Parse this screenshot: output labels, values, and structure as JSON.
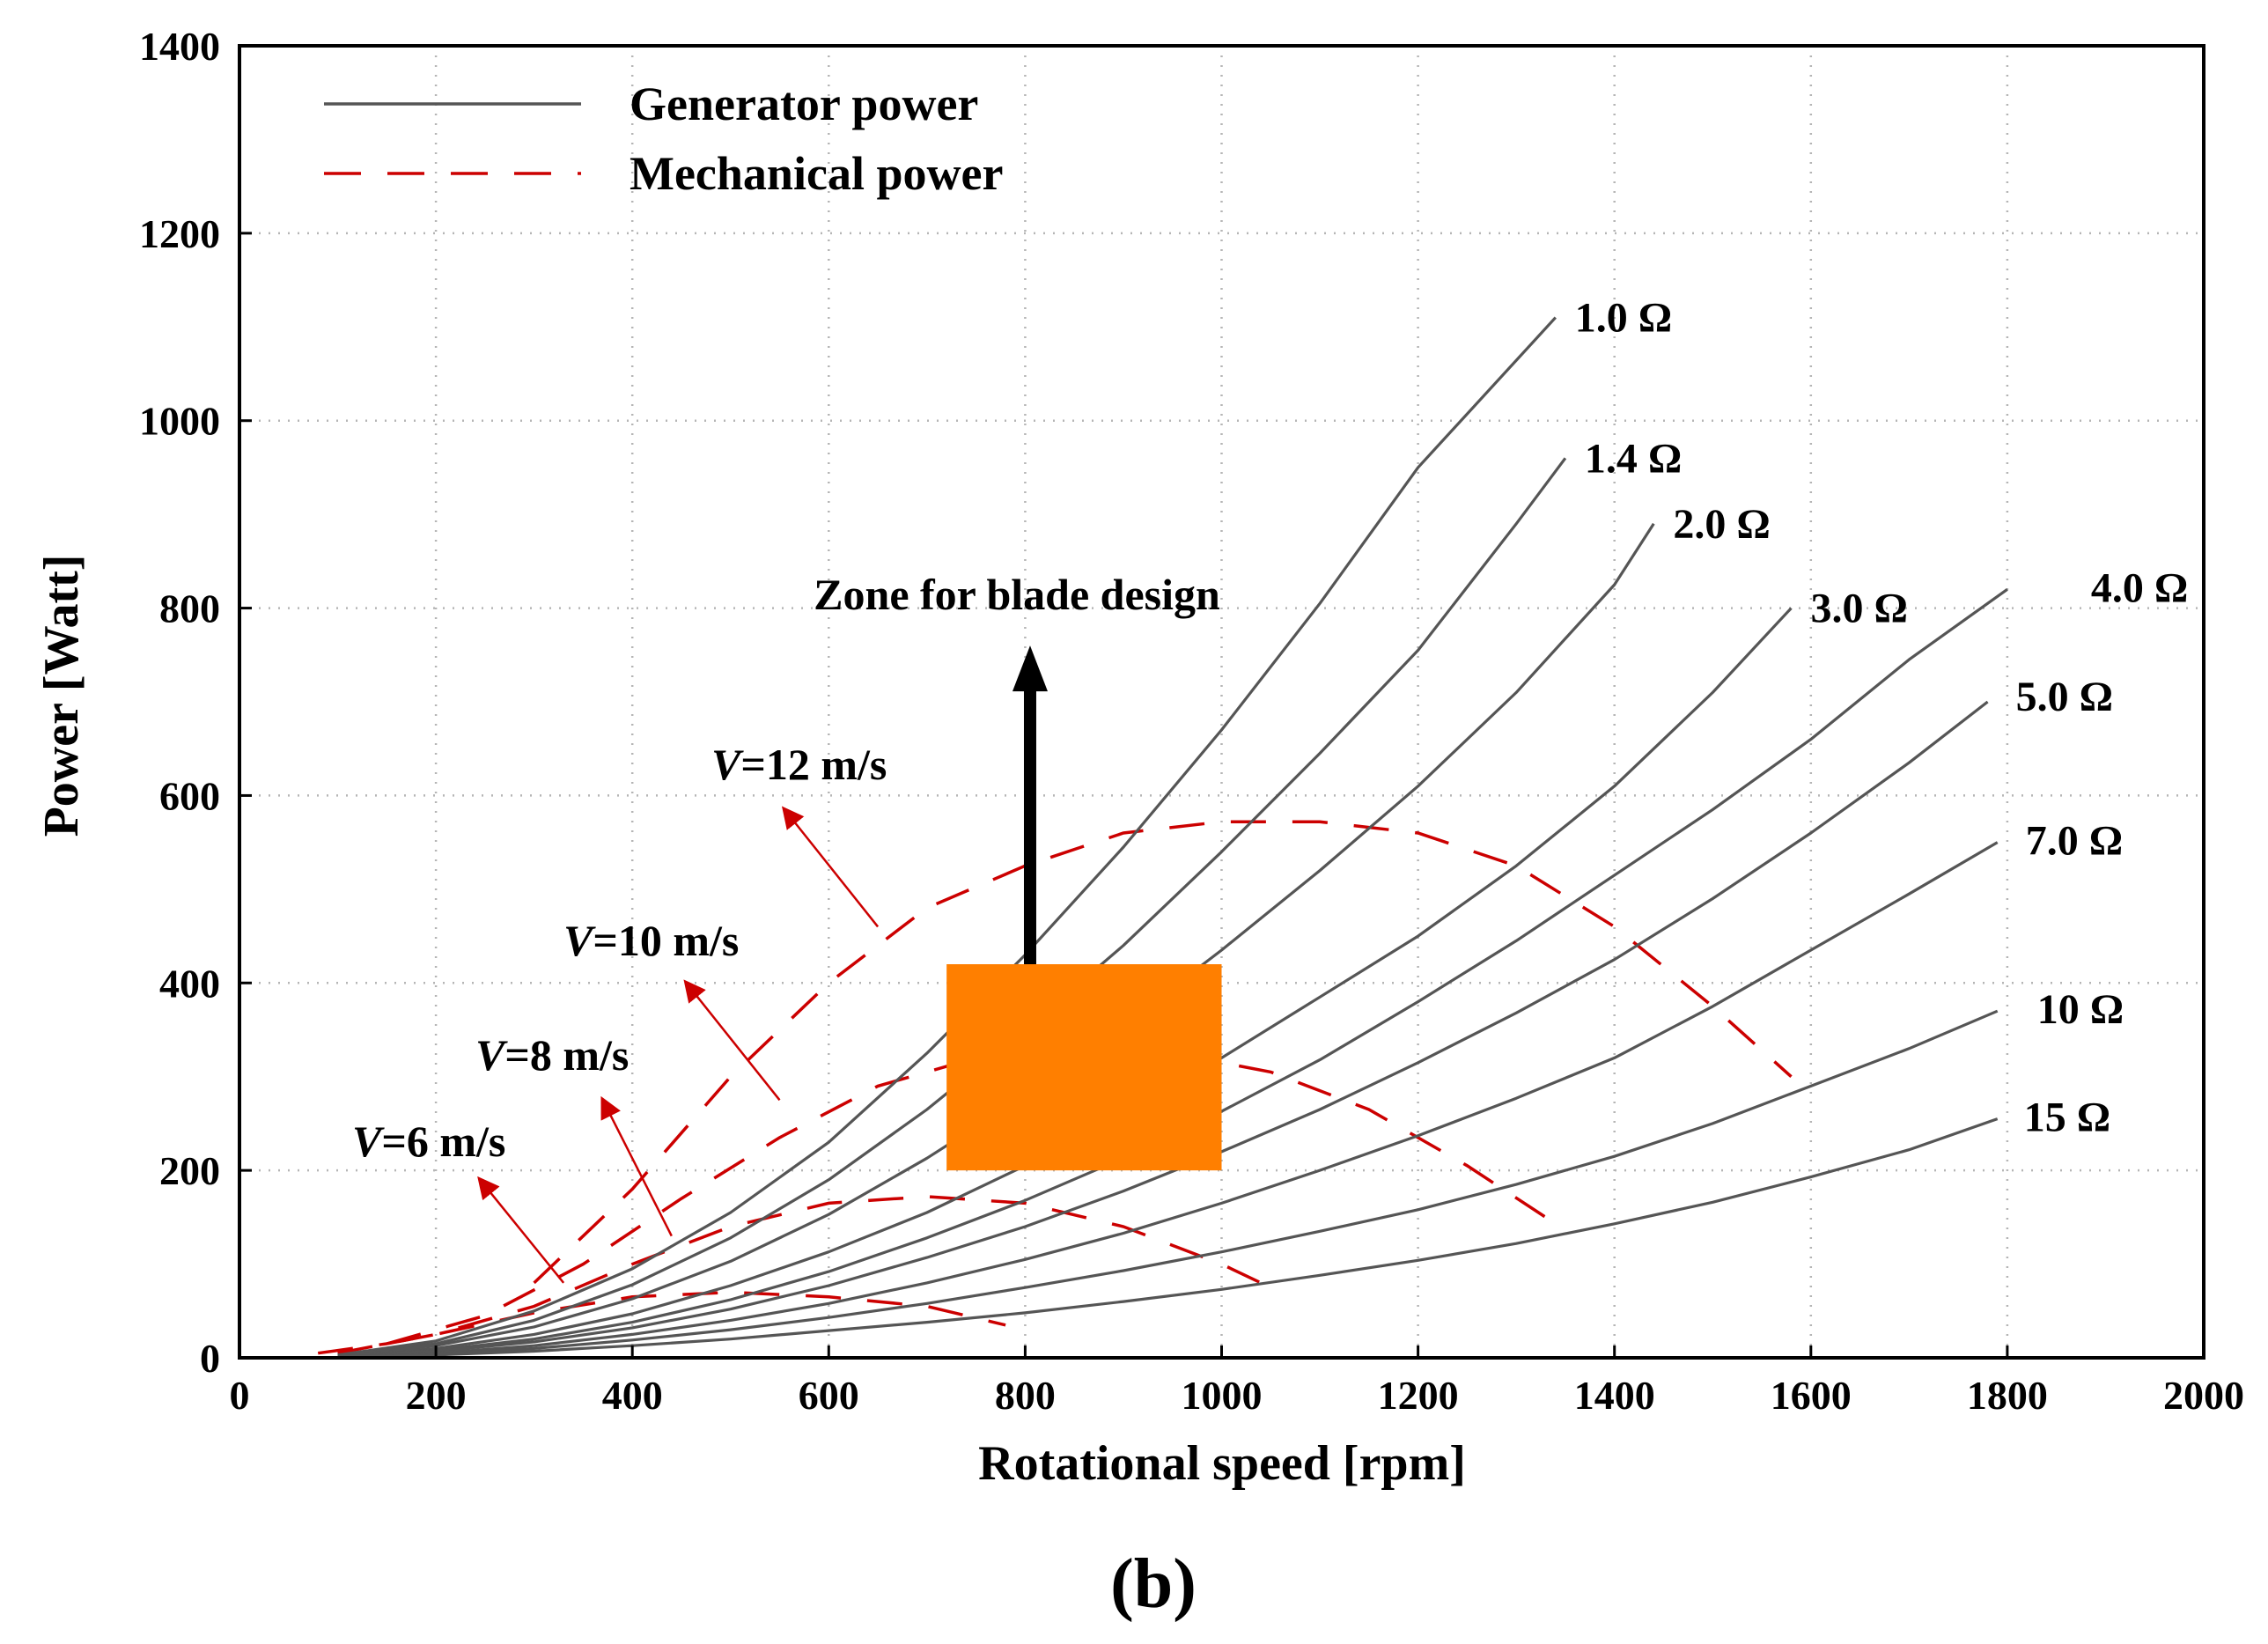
{
  "chart_data": {
    "type": "line",
    "title": "",
    "panel_label": "(b)",
    "xlabel": "Rotational speed [rpm]",
    "ylabel": "Power [Watt]",
    "xlim": [
      0,
      2000
    ],
    "ylim": [
      0,
      1400
    ],
    "x_ticks": [
      0,
      200,
      400,
      600,
      800,
      1000,
      1200,
      1400,
      1600,
      1800,
      2000
    ],
    "y_ticks": [
      0,
      200,
      400,
      600,
      800,
      1000,
      1200,
      1400
    ],
    "x_tick_labels": [
      "0",
      "200",
      "400",
      "600",
      "800",
      "1000",
      "1200",
      "1400",
      "1600",
      "1800",
      "2000"
    ],
    "y_tick_labels": [
      "0",
      "200",
      "400",
      "600",
      "800",
      "1000",
      "1200",
      "1400"
    ],
    "grid": true,
    "legend": {
      "position": "top-left",
      "entries": [
        {
          "label": "Generator power",
          "style": "solid",
          "color": "#555555"
        },
        {
          "label": "Mechanical power",
          "style": "dashed",
          "color": "#cc0000"
        }
      ]
    },
    "generator_series": [
      {
        "name": "1.0 Ω",
        "label": "1.0 Ω",
        "x": [
          100,
          200,
          300,
          400,
          500,
          600,
          700,
          800,
          900,
          1000,
          1100,
          1200,
          1340
        ],
        "y": [
          3,
          18,
          50,
          95,
          155,
          230,
          325,
          430,
          545,
          670,
          805,
          950,
          1110
        ]
      },
      {
        "name": "1.4 Ω",
        "label": "1.4 Ω",
        "x": [
          100,
          200,
          300,
          400,
          500,
          600,
          700,
          800,
          900,
          1000,
          1100,
          1200,
          1300,
          1350
        ],
        "y": [
          3,
          15,
          40,
          78,
          128,
          190,
          265,
          350,
          440,
          540,
          645,
          755,
          890,
          960
        ]
      },
      {
        "name": "2.0 Ω",
        "label": "2.0 Ω",
        "x": [
          100,
          200,
          300,
          400,
          500,
          600,
          700,
          800,
          900,
          1000,
          1100,
          1200,
          1300,
          1400,
          1440
        ],
        "y": [
          3,
          13,
          33,
          63,
          103,
          153,
          213,
          280,
          355,
          435,
          520,
          610,
          710,
          825,
          890
        ]
      },
      {
        "name": "3.0 Ω",
        "label": "3.0 Ω",
        "x": [
          100,
          200,
          300,
          400,
          500,
          600,
          700,
          800,
          900,
          1000,
          1100,
          1200,
          1300,
          1400,
          1500,
          1580
        ],
        "y": [
          2,
          10,
          25,
          47,
          77,
          113,
          155,
          205,
          260,
          320,
          385,
          450,
          525,
          610,
          710,
          800
        ]
      },
      {
        "name": "4.0 Ω",
        "label": "4.0 Ω",
        "x": [
          100,
          200,
          300,
          400,
          500,
          600,
          700,
          800,
          900,
          1000,
          1100,
          1200,
          1300,
          1400,
          1500,
          1600,
          1700,
          1800
        ],
        "y": [
          2,
          8,
          20,
          38,
          62,
          92,
          128,
          168,
          213,
          263,
          318,
          380,
          445,
          515,
          585,
          660,
          745,
          820
        ]
      },
      {
        "name": "5.0 Ω",
        "label": "5.0 Ω",
        "x": [
          100,
          200,
          300,
          400,
          500,
          600,
          700,
          800,
          900,
          1000,
          1100,
          1200,
          1300,
          1400,
          1500,
          1600,
          1700,
          1780
        ],
        "y": [
          2,
          7,
          17,
          32,
          52,
          77,
          107,
          140,
          178,
          220,
          265,
          315,
          368,
          425,
          490,
          560,
          635,
          700
        ]
      },
      {
        "name": "7.0 Ω",
        "label": "7.0 Ω",
        "x": [
          100,
          200,
          300,
          400,
          500,
          600,
          700,
          800,
          900,
          1000,
          1100,
          1200,
          1300,
          1400,
          1500,
          1600,
          1700,
          1790
        ],
        "y": [
          1,
          5,
          13,
          25,
          40,
          58,
          80,
          105,
          133,
          165,
          200,
          237,
          277,
          320,
          375,
          435,
          495,
          550
        ]
      },
      {
        "name": "10 Ω",
        "label": "10 Ω",
        "x": [
          100,
          200,
          300,
          400,
          500,
          600,
          700,
          800,
          900,
          1000,
          1100,
          1200,
          1300,
          1400,
          1500,
          1600,
          1700,
          1790
        ],
        "y": [
          1,
          4,
          10,
          19,
          30,
          43,
          58,
          75,
          93,
          113,
          135,
          158,
          185,
          215,
          250,
          290,
          330,
          370
        ]
      },
      {
        "name": "15 Ω",
        "label": "15 Ω",
        "x": [
          100,
          200,
          300,
          400,
          500,
          600,
          700,
          800,
          900,
          1000,
          1100,
          1200,
          1300,
          1400,
          1500,
          1600,
          1700,
          1790
        ],
        "y": [
          1,
          3,
          7,
          13,
          20,
          29,
          38,
          48,
          60,
          73,
          88,
          104,
          122,
          143,
          166,
          193,
          222,
          255
        ]
      }
    ],
    "mechanical_series": [
      {
        "name": "V=6 m/s",
        "x": [
          80,
          150,
          200,
          300,
          400,
          500,
          600,
          700,
          780
        ],
        "y": [
          5,
          15,
          25,
          48,
          65,
          70,
          65,
          55,
          35
        ]
      },
      {
        "name": "V=8 m/s",
        "x": [
          100,
          200,
          300,
          400,
          500,
          600,
          700,
          800,
          900,
          1000,
          1060
        ],
        "y": [
          5,
          25,
          55,
          100,
          140,
          165,
          172,
          165,
          140,
          100,
          70
        ]
      },
      {
        "name": "V=10 m/s",
        "x": [
          150,
          250,
          350,
          450,
          550,
          650,
          750,
          850,
          950,
          1050,
          1150,
          1250,
          1330
        ],
        "y": [
          15,
          45,
          100,
          170,
          235,
          290,
          320,
          330,
          325,
          305,
          265,
          205,
          150
        ]
      },
      {
        "name": "V=12 m/s",
        "x": [
          300,
          400,
          500,
          600,
          700,
          800,
          900,
          1000,
          1100,
          1200,
          1300,
          1400,
          1500,
          1580
        ],
        "y": [
          80,
          180,
          300,
          400,
          480,
          525,
          560,
          572,
          572,
          560,
          525,
          460,
          375,
          300
        ]
      }
    ],
    "annotations": {
      "zone_label": "Zone for blade design",
      "zone_box": {
        "x_range": [
          720,
          1000
        ],
        "y_range": [
          200,
          420
        ],
        "color": "#ff7f00"
      },
      "zone_arrow": {
        "x": 805,
        "y_from": 420,
        "y_to": 760
      },
      "wind_labels": [
        {
          "prefix": "V",
          "text": "=6 m/s",
          "arrow_from": [
            330,
            80
          ],
          "arrow_to": [
            245,
            190
          ]
        },
        {
          "prefix": "V",
          "text": "=8 m/s",
          "arrow_from": [
            440,
            130
          ],
          "arrow_to": [
            370,
            275
          ]
        },
        {
          "prefix": "V",
          "text": "=10 m/s",
          "arrow_from": [
            550,
            275
          ],
          "arrow_to": [
            455,
            400
          ]
        },
        {
          "prefix": "V",
          "text": "=12 m/s",
          "arrow_from": [
            650,
            460
          ],
          "arrow_to": [
            555,
            585
          ]
        }
      ]
    },
    "colors": {
      "generator": "#555555",
      "mechanical": "#cc0000",
      "zone": "#ff7f00",
      "axes": "#000000"
    }
  }
}
